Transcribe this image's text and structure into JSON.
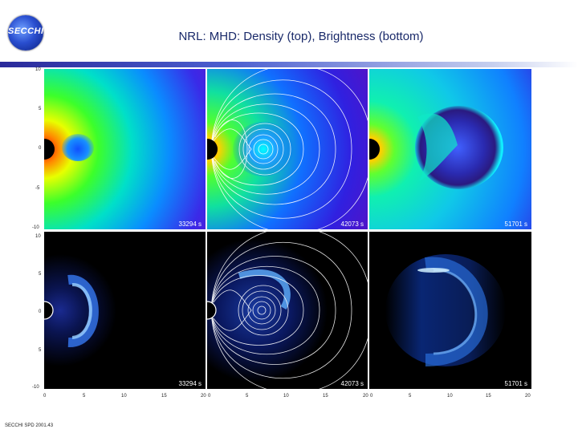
{
  "header": {
    "logo_text": "SECCHI",
    "title": "NRL: MHD: Density (top),  Brightness (bottom)"
  },
  "panels": {
    "top_1": {
      "time": "33294 s"
    },
    "top_2": {
      "time": "42073 s"
    },
    "top_3": {
      "time": "51701 s"
    },
    "bottom_1": {
      "time": "33294 s"
    },
    "bottom_2": {
      "time": "42073 s"
    },
    "bottom_3": {
      "time": "51701 s"
    }
  },
  "axes": {
    "y_ticks_top": [
      "10",
      "5",
      "0",
      "-5",
      "-10"
    ],
    "y_ticks_bottom": [
      "10",
      "5",
      "0",
      "5",
      "-10"
    ],
    "x_ticks_1": [
      "0",
      "5",
      "10",
      "15",
      "20"
    ],
    "x_ticks_2": [
      "0",
      "5",
      "10",
      "15",
      "20"
    ],
    "x_ticks_3": [
      "0",
      "5",
      "10",
      "15",
      "20"
    ]
  },
  "footer": {
    "text": "SECCHI SPD 2001.43"
  }
}
